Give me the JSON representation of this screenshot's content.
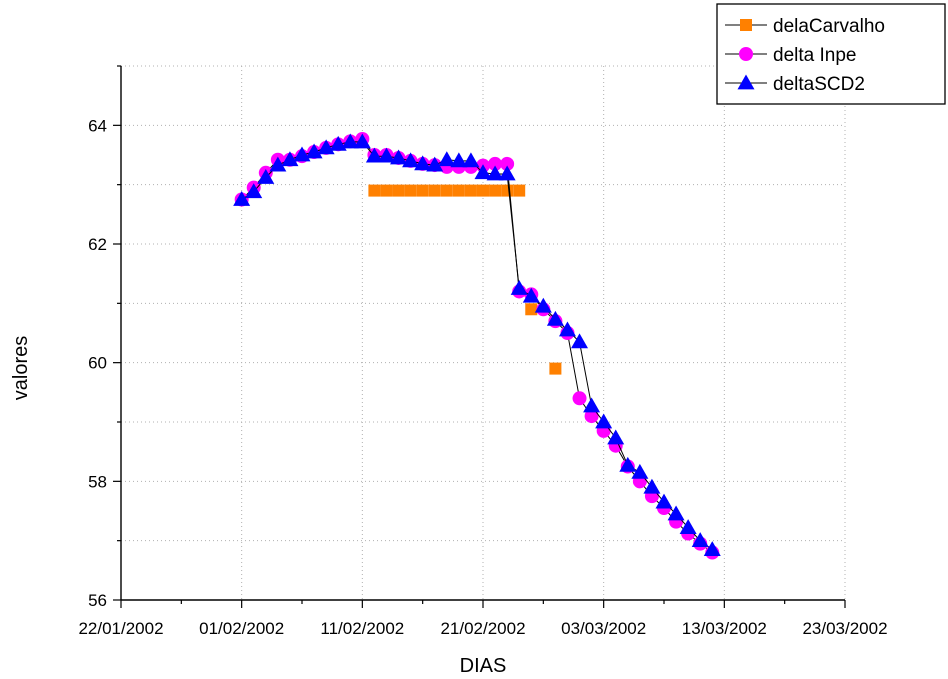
{
  "chart_data": {
    "type": "scatter",
    "title": "",
    "xlabel": "DIAS",
    "ylabel": "valores",
    "xlim": [
      "2002-01-22",
      "2002-03-23"
    ],
    "ylim": [
      56,
      65
    ],
    "x_tick_labels": [
      "22/01/2002",
      "01/02/2002",
      "11/02/2002",
      "21/02/2002",
      "03/03/2002",
      "13/03/2002",
      "23/03/2002"
    ],
    "y_tick_labels": [
      "56",
      "58",
      "60",
      "62",
      "64"
    ],
    "grid": true,
    "legend_position": "top-right",
    "series": [
      {
        "name": "delaCarvalho",
        "color": "#ff8000",
        "marker": "square",
        "line": false,
        "points": [
          [
            "2002-02-12",
            62.9
          ],
          [
            "2002-02-13",
            62.9
          ],
          [
            "2002-02-14",
            62.9
          ],
          [
            "2002-02-15",
            62.9
          ],
          [
            "2002-02-16",
            62.9
          ],
          [
            "2002-02-17",
            62.9
          ],
          [
            "2002-02-18",
            62.9
          ],
          [
            "2002-02-19",
            62.9
          ],
          [
            "2002-02-20",
            62.9
          ],
          [
            "2002-02-21",
            62.9
          ],
          [
            "2002-02-22",
            62.9
          ],
          [
            "2002-02-23",
            62.9
          ],
          [
            "2002-02-24",
            62.9
          ],
          [
            "2002-02-25",
            60.9
          ],
          [
            "2002-02-27",
            59.9
          ]
        ]
      },
      {
        "name": "delta Inpe",
        "color": "#ff00ff",
        "marker": "circle",
        "line": true,
        "points": [
          [
            "2002-02-01",
            62.75
          ],
          [
            "2002-02-02",
            62.95
          ],
          [
            "2002-02-03",
            63.2
          ],
          [
            "2002-02-04",
            63.42
          ],
          [
            "2002-02-05",
            63.42
          ],
          [
            "2002-02-06",
            63.48
          ],
          [
            "2002-02-07",
            63.55
          ],
          [
            "2002-02-08",
            63.62
          ],
          [
            "2002-02-09",
            63.68
          ],
          [
            "2002-02-10",
            63.73
          ],
          [
            "2002-02-11",
            63.77
          ],
          [
            "2002-02-12",
            63.5
          ],
          [
            "2002-02-13",
            63.5
          ],
          [
            "2002-02-14",
            63.45
          ],
          [
            "2002-02-15",
            63.4
          ],
          [
            "2002-02-16",
            63.35
          ],
          [
            "2002-02-17",
            63.33
          ],
          [
            "2002-02-18",
            63.3
          ],
          [
            "2002-02-19",
            63.3
          ],
          [
            "2002-02-20",
            63.3
          ],
          [
            "2002-02-21",
            63.32
          ],
          [
            "2002-02-22",
            63.35
          ],
          [
            "2002-02-23",
            63.35
          ],
          [
            "2002-02-24",
            61.2
          ],
          [
            "2002-02-25",
            61.15
          ],
          [
            "2002-02-26",
            60.9
          ],
          [
            "2002-02-27",
            60.7
          ],
          [
            "2002-02-28",
            60.5
          ],
          [
            "2002-03-01",
            59.4
          ],
          [
            "2002-03-02",
            59.1
          ],
          [
            "2002-03-03",
            58.85
          ],
          [
            "2002-03-04",
            58.6
          ],
          [
            "2002-03-05",
            58.25
          ],
          [
            "2002-03-06",
            58.0
          ],
          [
            "2002-03-07",
            57.75
          ],
          [
            "2002-03-08",
            57.55
          ],
          [
            "2002-03-09",
            57.32
          ],
          [
            "2002-03-10",
            57.12
          ],
          [
            "2002-03-11",
            56.95
          ],
          [
            "2002-03-12",
            56.8
          ]
        ]
      },
      {
        "name": "deltaSCD2",
        "color": "#0000ff",
        "marker": "triangle",
        "line": true,
        "points": [
          [
            "2002-02-01",
            62.75
          ],
          [
            "2002-02-02",
            62.88
          ],
          [
            "2002-02-03",
            63.12
          ],
          [
            "2002-02-04",
            63.33
          ],
          [
            "2002-02-05",
            63.42
          ],
          [
            "2002-02-06",
            63.5
          ],
          [
            "2002-02-07",
            63.55
          ],
          [
            "2002-02-08",
            63.62
          ],
          [
            "2002-02-09",
            63.68
          ],
          [
            "2002-02-10",
            63.72
          ],
          [
            "2002-02-11",
            63.72
          ],
          [
            "2002-02-12",
            63.48
          ],
          [
            "2002-02-13",
            63.48
          ],
          [
            "2002-02-14",
            63.45
          ],
          [
            "2002-02-15",
            63.4
          ],
          [
            "2002-02-16",
            63.35
          ],
          [
            "2002-02-17",
            63.33
          ],
          [
            "2002-02-18",
            63.42
          ],
          [
            "2002-02-19",
            63.4
          ],
          [
            "2002-02-20",
            63.4
          ],
          [
            "2002-02-21",
            63.2
          ],
          [
            "2002-02-22",
            63.18
          ],
          [
            "2002-02-23",
            63.18
          ],
          [
            "2002-02-24",
            61.25
          ],
          [
            "2002-02-25",
            61.12
          ],
          [
            "2002-02-26",
            60.95
          ],
          [
            "2002-02-27",
            60.73
          ],
          [
            "2002-02-28",
            60.55
          ],
          [
            "2002-03-01",
            60.35
          ],
          [
            "2002-03-02",
            59.27
          ],
          [
            "2002-03-03",
            59.0
          ],
          [
            "2002-03-04",
            58.73
          ],
          [
            "2002-03-05",
            58.27
          ],
          [
            "2002-03-06",
            58.15
          ],
          [
            "2002-03-07",
            57.9
          ],
          [
            "2002-03-08",
            57.65
          ],
          [
            "2002-03-09",
            57.45
          ],
          [
            "2002-03-10",
            57.22
          ],
          [
            "2002-03-11",
            57.0
          ],
          [
            "2002-03-12",
            56.85
          ]
        ]
      }
    ]
  }
}
